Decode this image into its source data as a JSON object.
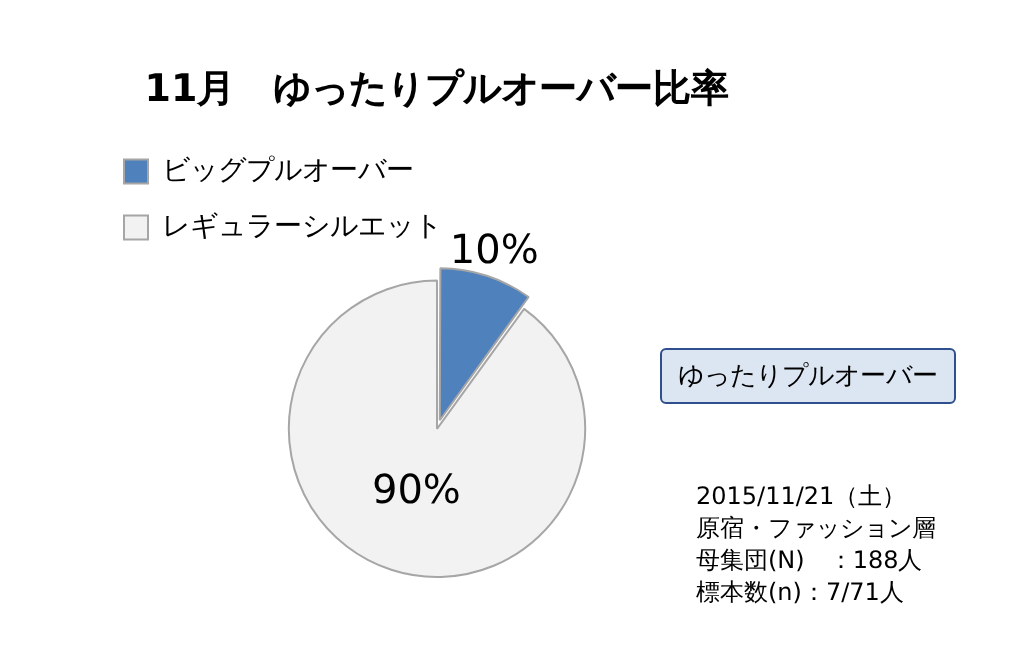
{
  "chart_data": {
    "type": "pie",
    "title": "11月　ゆったりプルオーバー比率",
    "categories": [
      "ビッグプルオーバー",
      "レギュラーシルエット"
    ],
    "values": [
      10,
      90
    ],
    "colors": [
      "#4f81bd",
      "#f2f2f2"
    ],
    "value_labels": [
      "10%",
      "90%"
    ],
    "legend": "top left",
    "annotations": [
      "ゆったりプルオーバー",
      "2015/11/21（土）",
      "原宿・ファッション層",
      "母集団(N)　：188人",
      "標本数(n)：7/71人"
    ]
  }
}
